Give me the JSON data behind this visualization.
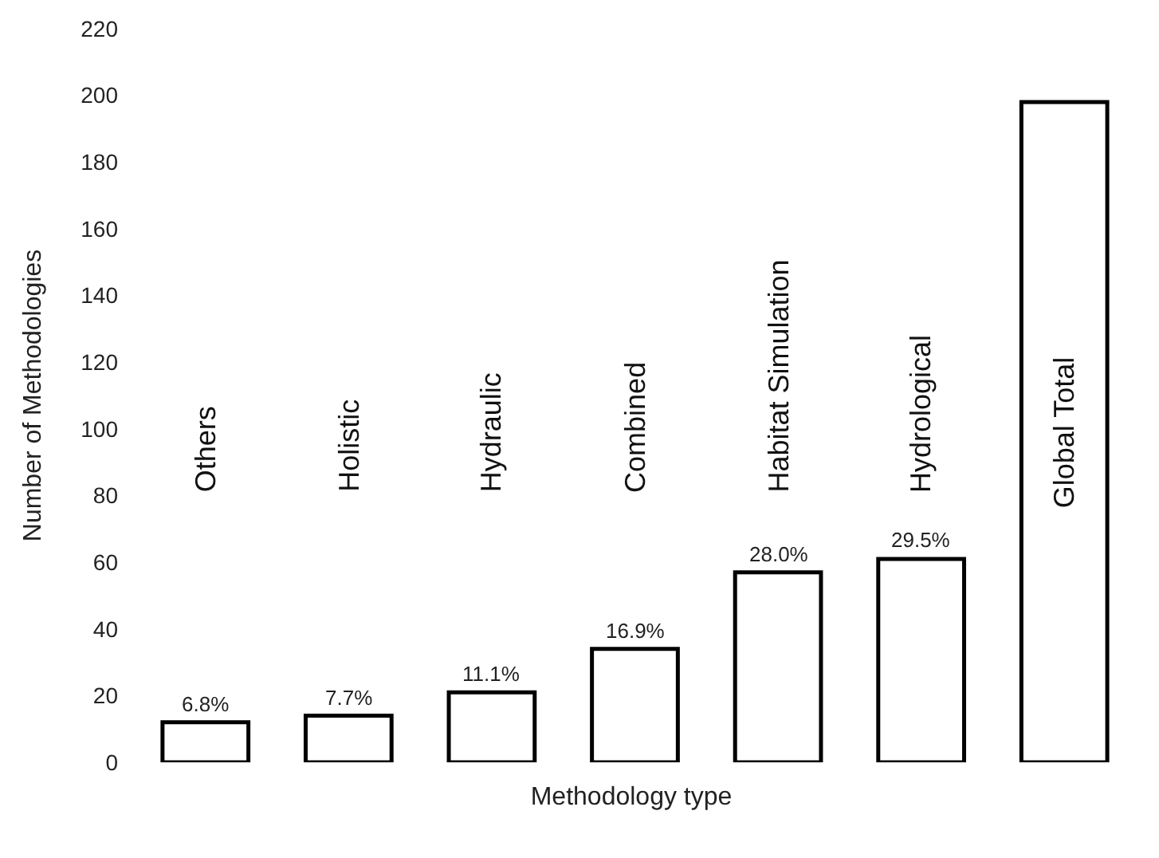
{
  "chart_data": {
    "type": "bar",
    "xlabel": "Methodology type",
    "ylabel": "Number of Methodologies",
    "categories": [
      "Others",
      "Holistic",
      "Hydraulic",
      "Combined",
      "Habitat Simulation",
      "Hydrological",
      "Global Total"
    ],
    "values": [
      12,
      14,
      21,
      34,
      57,
      61,
      198
    ],
    "annotations": [
      {
        "text": "6.8%",
        "x": "Others",
        "y": 12
      },
      {
        "text": "7.7%",
        "x": "Holistic",
        "y": 14
      },
      {
        "text": "11.1%",
        "x": "Hydraulic",
        "y": 21
      },
      {
        "text": "16.9%",
        "x": "Combined",
        "y": 34
      },
      {
        "text": "28.0%",
        "x": "Habitat Simulation",
        "y": 57
      },
      {
        "text": "29.5%",
        "x": "Hydrological",
        "y": 61
      }
    ],
    "color": "#ffffff",
    "ylim": [
      0,
      220
    ],
    "yticks": [
      0,
      20,
      40,
      60,
      80,
      100,
      120,
      140,
      160,
      180,
      200,
      220
    ]
  }
}
